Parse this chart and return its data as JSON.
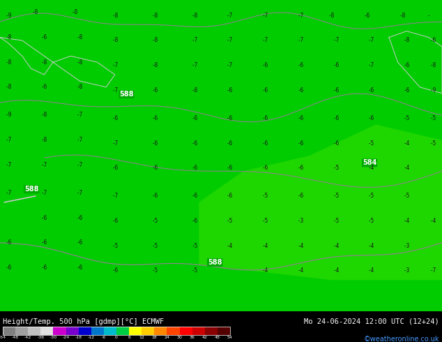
{
  "title_left": "Height/Temp. 500 hPa [gdmp][°C] ECMWF",
  "title_right": "Mo 24-06-2024 12:00 UTC (12+24)",
  "credit": "©weatheronline.co.uk",
  "colorbar_levels": [
    -54,
    -48,
    -42,
    -36,
    -30,
    -24,
    -18,
    -12,
    -6,
    0,
    6,
    12,
    18,
    24,
    30,
    36,
    42,
    48,
    54
  ],
  "colorbar_colors": [
    "#808080",
    "#a0a0a0",
    "#c0c0c0",
    "#e0e0e0",
    "#ff00ff",
    "#8800ff",
    "#0000ff",
    "#0088ff",
    "#00ccff",
    "#00ff88",
    "#00cc00",
    "#ffff00",
    "#ffcc00",
    "#ff8800",
    "#ff4400",
    "#ff0000",
    "#cc0000",
    "#880000"
  ],
  "bg_color": "#00cc00",
  "map_bg": "#00cc00",
  "contour_color_dark": "#3a3a3a",
  "contour_label_color": "#ffffff",
  "fig_width": 6.34,
  "fig_height": 4.9,
  "dpi": 100
}
